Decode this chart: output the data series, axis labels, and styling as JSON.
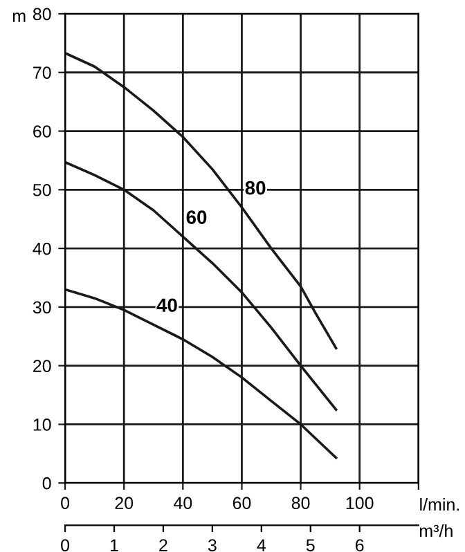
{
  "chart_data": {
    "type": "line",
    "ylabel": "m",
    "xlabel": "l/min.",
    "x2label": "m³/h",
    "xlim": [
      0,
      120
    ],
    "xticks": [
      0,
      20,
      40,
      60,
      80,
      100,
      {
        "value": 120,
        "label": null
      }
    ],
    "ylim": [
      0,
      80
    ],
    "yticks": [
      0,
      10,
      20,
      30,
      40,
      50,
      60,
      70,
      80
    ],
    "x2lim": [
      0,
      7.2
    ],
    "x2ticks": [
      0,
      1,
      2,
      3,
      4,
      5,
      6
    ],
    "grid": true,
    "marker": "none",
    "line_style": "solid",
    "series": [
      {
        "name": "80",
        "color": "#1a1a1a",
        "x": [
          0,
          10,
          20,
          30,
          40,
          50,
          60,
          70,
          80,
          85,
          92
        ],
        "values": [
          73.3,
          71,
          67.5,
          63.5,
          59,
          53.5,
          47,
          40,
          33.5,
          29,
          23
        ]
      },
      {
        "name": "60",
        "color": "#1a1a1a",
        "x": [
          0,
          10,
          20,
          30,
          40,
          50,
          60,
          70,
          80,
          92
        ],
        "values": [
          54.7,
          52.5,
          50,
          46.5,
          42,
          37.5,
          32.5,
          26.5,
          20,
          12.5
        ]
      },
      {
        "name": "40",
        "color": "#1a1a1a",
        "x": [
          0,
          10,
          20,
          30,
          40,
          50,
          60,
          70,
          80,
          92
        ],
        "values": [
          33,
          31.5,
          29.5,
          27,
          24.5,
          21.5,
          18,
          14,
          10,
          4.3
        ]
      }
    ]
  }
}
